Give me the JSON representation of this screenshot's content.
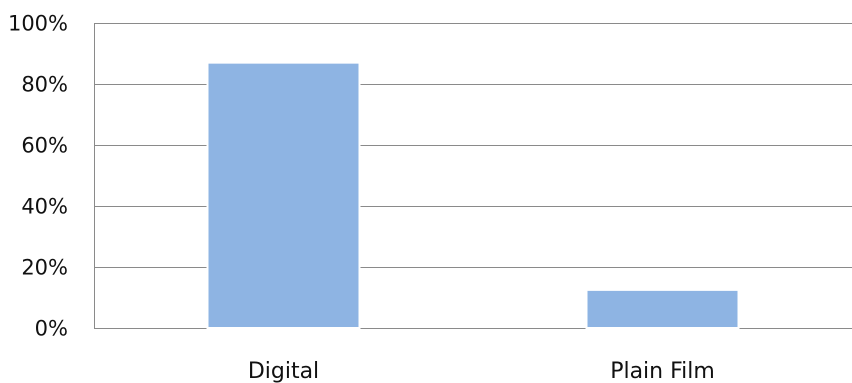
{
  "chart_data": {
    "type": "bar",
    "categories": [
      "Digital",
      "Plain Film"
    ],
    "values": [
      87,
      12.5
    ],
    "title": "",
    "xlabel": "",
    "ylabel": "",
    "ylim": [
      0,
      100
    ],
    "y_ticks": [
      "0%",
      "20%",
      "40%",
      "60%",
      "80%",
      "100%"
    ],
    "y_tick_values": [
      0,
      20,
      40,
      60,
      80,
      100
    ],
    "grid": true,
    "legend": "none",
    "colors": {
      "bar_fill": "#8eb4e3",
      "bar_edge": "#ffffff",
      "grid": "#8a8a8a",
      "text": "#111111"
    }
  }
}
